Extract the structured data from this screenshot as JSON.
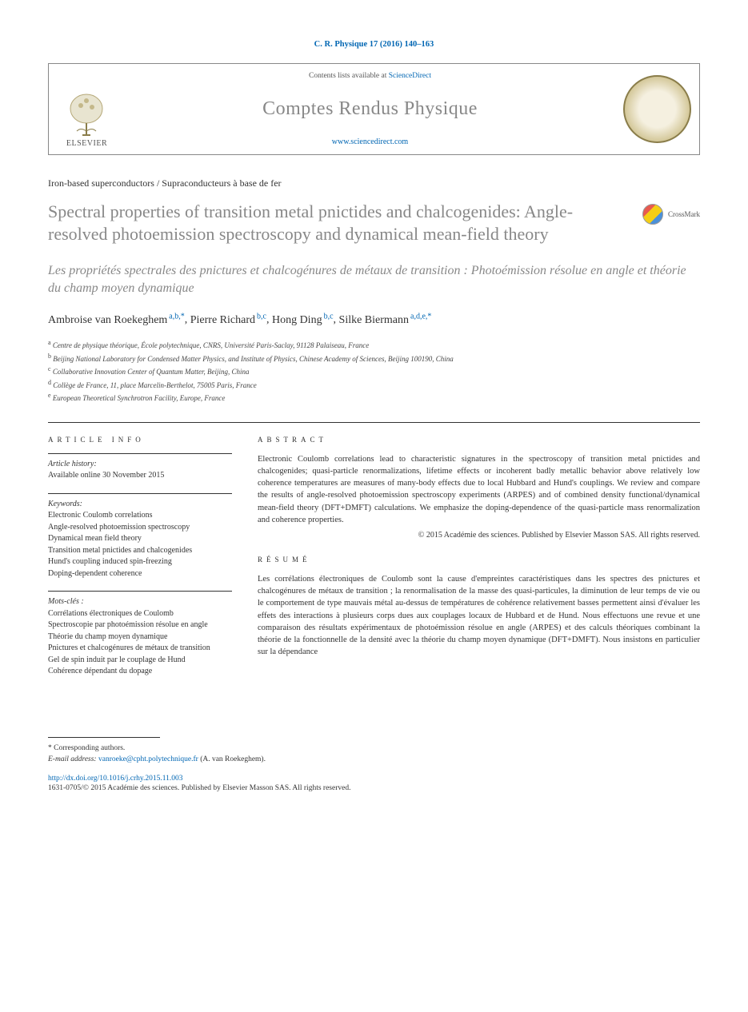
{
  "citation": "C. R. Physique 17 (2016) 140–163",
  "header": {
    "contents_prefix": "Contents lists available at ",
    "contents_link": "ScienceDirect",
    "journal_name": "Comptes Rendus Physique",
    "journal_url": "www.sciencedirect.com",
    "publisher_label": "ELSEVIER"
  },
  "crossmark_label": "CrossMark",
  "section_label": "Iron-based superconductors / Supraconducteurs à base de fer",
  "title": "Spectral properties of transition metal pnictides and chalcogenides: Angle-resolved photoemission spectroscopy and dynamical mean-field theory",
  "subtitle": "Les propriétés spectrales des pnictures et chalcogénures de métaux de transition : Photoémission résolue en angle et théorie du champ moyen dynamique",
  "authors": [
    {
      "name": "Ambroise van Roekeghem",
      "aff": "a,b,*"
    },
    {
      "name": "Pierre Richard",
      "aff": "b,c"
    },
    {
      "name": "Hong Ding",
      "aff": "b,c"
    },
    {
      "name": "Silke Biermann",
      "aff": "a,d,e,*"
    }
  ],
  "affiliations": [
    {
      "key": "a",
      "text": "Centre de physique théorique, École polytechnique, CNRS, Université Paris-Saclay, 91128 Palaiseau, France"
    },
    {
      "key": "b",
      "text": "Beijing National Laboratory for Condensed Matter Physics, and Institute of Physics, Chinese Academy of Sciences, Beijing 100190, China"
    },
    {
      "key": "c",
      "text": "Collaborative Innovation Center of Quantum Matter, Beijing, China"
    },
    {
      "key": "d",
      "text": "Collège de France, 11, place Marcelin-Berthelot, 75005 Paris, France"
    },
    {
      "key": "e",
      "text": "European Theoretical Synchrotron Facility, Europe, France"
    }
  ],
  "info": {
    "heading": "ARTICLE INFO",
    "history_label": "Article history:",
    "history_value": "Available online 30 November 2015",
    "keywords_label": "Keywords:",
    "keywords": [
      "Electronic Coulomb correlations",
      "Angle-resolved photoemission spectroscopy",
      "Dynamical mean field theory",
      "Transition metal pnictides and chalcogenides",
      "Hund's coupling induced spin-freezing",
      "Doping-dependent coherence"
    ],
    "motscles_label": "Mots-clés :",
    "motscles": [
      "Corrélations électroniques de Coulomb",
      "Spectroscopie par photoémission résolue en angle",
      "Théorie du champ moyen dynamique",
      "Pnictures et chalcogénures de métaux de transition",
      "Gel de spin induit par le couplage de Hund",
      "Cohérence dépendant du dopage"
    ]
  },
  "abstract": {
    "heading": "ABSTRACT",
    "text": "Electronic Coulomb correlations lead to characteristic signatures in the spectroscopy of transition metal pnictides and chalcogenides; quasi-particle renormalizations, lifetime effects or incoherent badly metallic behavior above relatively low coherence temperatures are measures of many-body effects due to local Hubbard and Hund's couplings. We review and compare the results of angle-resolved photoemission spectroscopy experiments (ARPES) and of combined density functional/dynamical mean-field theory (DFT+DMFT) calculations. We emphasize the doping-dependence of the quasi-particle mass renormalization and coherence properties.",
    "copyright": "© 2015 Académie des sciences. Published by Elsevier Masson SAS. All rights reserved."
  },
  "resume": {
    "heading": "RÉSUMÉ",
    "text": "Les corrélations électroniques de Coulomb sont la cause d'empreintes caractéristiques dans les spectres des pnictures et chalcogénures de métaux de transition ; la renormalisation de la masse des quasi-particules, la diminution de leur temps de vie ou le comportement de type mauvais métal au-dessus de températures de cohérence relativement basses permettent ainsi d'évaluer les effets des interactions à plusieurs corps dues aux couplages locaux de Hubbard et de Hund. Nous effectuons une revue et une comparaison des résultats expérimentaux de photoémission résolue en angle (ARPES) et des calculs théoriques combinant la théorie de la fonctionnelle de la densité avec la théorie du champ moyen dynamique (DFT+DMFT). Nous insistons en particulier sur la dépendance"
  },
  "footer": {
    "corr_label": "* Corresponding authors.",
    "email_label": "E-mail address:",
    "email": "vanroeke@cpht.polytechnique.fr",
    "email_who": "(A. van Roekeghem).",
    "doi": "http://dx.doi.org/10.1016/j.crhy.2015.11.003",
    "issn_line": "1631-0705/© 2015 Académie des sciences. Published by Elsevier Masson SAS. All rights reserved."
  }
}
